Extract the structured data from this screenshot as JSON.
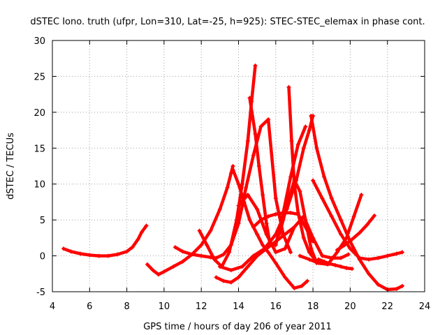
{
  "chart_data": {
    "type": "scatter",
    "title": "dSTEC Iono. truth (ufpr, Lon=310, Lat=-25, h=925): STEC-STEC_elemax in phase cont.",
    "xlabel": "GPS time / hours of day 206 of year 2011",
    "ylabel": "dSTEC  / TECUs",
    "xlim": [
      4,
      24
    ],
    "ylim": [
      -5,
      30
    ],
    "xticks": [
      4,
      6,
      8,
      10,
      12,
      14,
      16,
      18,
      20,
      22,
      24
    ],
    "yticks": [
      -5,
      0,
      5,
      10,
      15,
      20,
      25,
      30
    ],
    "grid": true,
    "marker": "+",
    "color": "#ff0000",
    "series": [
      {
        "x": [
          4.6,
          5.0,
          5.5,
          6.0,
          6.5,
          7.0,
          7.5,
          8.0,
          8.3,
          8.6,
          8.8,
          9.05
        ],
        "y": [
          1.0,
          0.6,
          0.3,
          0.1,
          0.0,
          0.0,
          0.2,
          0.6,
          1.2,
          2.3,
          3.3,
          4.2
        ]
      },
      {
        "x": [
          9.1,
          9.4,
          9.7,
          10.0,
          10.5,
          11.0,
          11.5,
          12.0,
          12.5,
          13.0,
          13.4,
          13.6,
          13.7
        ],
        "y": [
          -1.2,
          -2.0,
          -2.6,
          -2.2,
          -1.5,
          -0.8,
          0.2,
          1.5,
          3.5,
          6.5,
          9.5,
          11.5,
          12.5
        ]
      },
      {
        "x": [
          10.6,
          11.0,
          11.5,
          12.0,
          12.5,
          12.8
        ],
        "y": [
          1.2,
          0.6,
          0.2,
          0.0,
          -0.2,
          -0.3
        ]
      },
      {
        "x": [
          12.8,
          13.2,
          13.6,
          14.0,
          14.4,
          14.8,
          15.2,
          15.6,
          16.0,
          16.4,
          16.8
        ],
        "y": [
          -0.3,
          0.2,
          1.5,
          4.5,
          9.5,
          14.0,
          18.0,
          19.0,
          8.0,
          3.0,
          0.5
        ]
      },
      {
        "x": [
          11.9,
          12.3,
          12.7,
          13.1,
          13.5,
          13.9,
          14.2,
          14.5,
          14.7,
          14.9
        ],
        "y": [
          3.5,
          1.5,
          -0.5,
          -1.5,
          0.5,
          5.0,
          10.0,
          16.0,
          21.5,
          26.5
        ]
      },
      {
        "x": [
          12.8,
          13.2,
          13.6,
          14.0,
          14.5,
          15.0,
          15.5,
          16.0,
          16.5,
          17.0
        ],
        "y": [
          -3.0,
          -3.5,
          -3.7,
          -3.0,
          -1.5,
          0.0,
          1.0,
          2.0,
          3.0,
          4.0
        ]
      },
      {
        "x": [
          13.0,
          13.6,
          14.2,
          14.8,
          15.4,
          16.0,
          16.6,
          17.1,
          17.5,
          17.8,
          18.0
        ],
        "y": [
          -1.5,
          -2.0,
          -1.5,
          0.0,
          1.0,
          3.0,
          6.5,
          10.5,
          15.0,
          17.5,
          19.5
        ]
      },
      {
        "x": [
          13.7,
          14.0,
          14.3,
          14.6,
          15.0,
          15.3,
          15.6,
          16.0,
          16.5,
          17.0,
          17.4,
          17.7
        ],
        "y": [
          12.0,
          10.0,
          7.5,
          5.0,
          3.0,
          1.5,
          0.5,
          -1.0,
          -3.0,
          -4.5,
          -4.2,
          -3.5
        ]
      },
      {
        "x": [
          14.0,
          14.5,
          15.0,
          15.5,
          16.0,
          16.5,
          17.0,
          17.5,
          18.0,
          18.5,
          19.0,
          19.5,
          19.9
        ],
        "y": [
          7.0,
          8.5,
          6.5,
          3.0,
          0.5,
          1.0,
          4.0,
          5.5,
          2.5,
          0.0,
          -0.3,
          -0.3,
          0.2
        ]
      },
      {
        "x": [
          14.6,
          14.9,
          15.1,
          15.3,
          15.5,
          15.7,
          16.0,
          16.4,
          16.8,
          17.2,
          17.6
        ],
        "y": [
          22.0,
          17.0,
          12.5,
          8.5,
          4.5,
          1.5,
          1.5,
          6.0,
          11.0,
          15.5,
          18.0
        ]
      },
      {
        "x": [
          14.8,
          15.2,
          15.6,
          16.0,
          16.4,
          16.8,
          17.2,
          17.6,
          18.0
        ],
        "y": [
          4.0,
          5.0,
          5.5,
          5.8,
          6.0,
          6.0,
          5.8,
          4.0,
          2.0
        ]
      },
      {
        "x": [
          16.7,
          16.85,
          17.0,
          17.2,
          17.5,
          17.8,
          18.1,
          18.4
        ],
        "y": [
          23.5,
          16.0,
          10.0,
          6.0,
          2.5,
          0.5,
          -0.5,
          -1.0
        ]
      },
      {
        "x": [
          16.2,
          16.4,
          16.7,
          17.0,
          17.3,
          17.6,
          17.9,
          18.2
        ],
        "y": [
          3.0,
          5.0,
          8.0,
          10.5,
          9.0,
          5.0,
          1.0,
          -1.0
        ]
      },
      {
        "x": [
          17.9,
          18.2,
          18.6,
          19.0,
          19.5,
          20.0,
          20.5,
          21.0,
          21.5,
          22.0,
          22.5,
          22.8
        ],
        "y": [
          19.5,
          15.0,
          11.0,
          8.0,
          5.0,
          2.0,
          -0.5,
          -2.5,
          -4.0,
          -4.7,
          -4.6,
          -4.2
        ]
      },
      {
        "x": [
          18.0,
          18.5,
          19.0,
          19.5,
          20.0,
          20.5,
          21.0,
          21.5,
          22.0,
          22.5,
          22.8
        ],
        "y": [
          10.5,
          8.0,
          5.5,
          3.0,
          1.0,
          -0.3,
          -0.5,
          -0.3,
          0.0,
          0.3,
          0.5
        ]
      },
      {
        "x": [
          17.3,
          17.8,
          18.3,
          18.8,
          19.3,
          19.8,
          20.2,
          20.6
        ],
        "y": [
          0.0,
          -0.5,
          -1.0,
          -1.2,
          0.5,
          2.5,
          5.5,
          8.5
        ]
      },
      {
        "x": [
          18.3,
          18.6,
          18.9,
          19.2,
          19.5,
          19.8,
          20.1
        ],
        "y": [
          -0.5,
          -0.8,
          -1.1,
          -1.3,
          -1.5,
          -1.7,
          -1.8
        ]
      },
      {
        "x": [
          19.3,
          19.7,
          20.1,
          20.5,
          20.9,
          21.3
        ],
        "y": [
          0.8,
          1.5,
          2.3,
          3.2,
          4.3,
          5.6
        ]
      }
    ]
  }
}
